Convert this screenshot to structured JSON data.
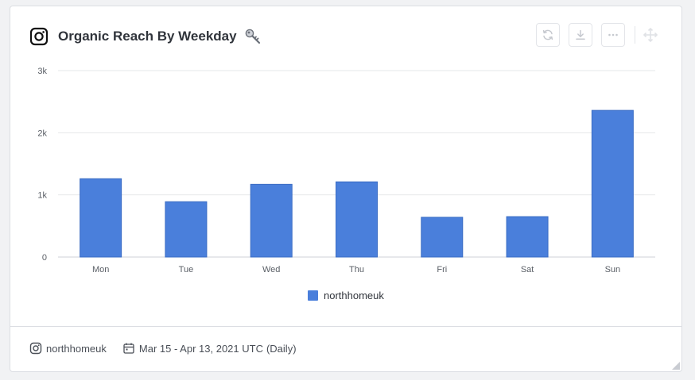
{
  "widget": {
    "title": "Organic Reach By Weekday",
    "platform_icon": "instagram-icon",
    "title_icon": "key-icon"
  },
  "toolbar": {
    "buttons": [
      {
        "name": "refresh-button",
        "icon": "refresh-icon"
      },
      {
        "name": "download-button",
        "icon": "download-icon"
      },
      {
        "name": "more-options-button",
        "icon": "ellipsis-icon"
      }
    ],
    "move_icon": "move-icon"
  },
  "footer": {
    "account": "northhomeuk",
    "date_range": "Mar 15 - Apr 13, 2021 UTC",
    "granularity": "(Daily)"
  },
  "colors": {
    "bar": "#4a7fdb",
    "grid": "#e6e7ea",
    "axis_text": "#5a5f66"
  },
  "chart_data": {
    "type": "bar",
    "categories": [
      "Mon",
      "Tue",
      "Wed",
      "Thu",
      "Fri",
      "Sat",
      "Sun"
    ],
    "series": [
      {
        "name": "northhomeuk",
        "values": [
          1260,
          890,
          1170,
          1210,
          640,
          650,
          2360
        ]
      }
    ],
    "ylim": [
      0,
      3000
    ],
    "yticks": [
      0,
      1000,
      2000,
      3000
    ],
    "ytick_labels": [
      "0",
      "1k",
      "2k",
      "3k"
    ],
    "grid": true,
    "legend_position": "bottom-center"
  }
}
